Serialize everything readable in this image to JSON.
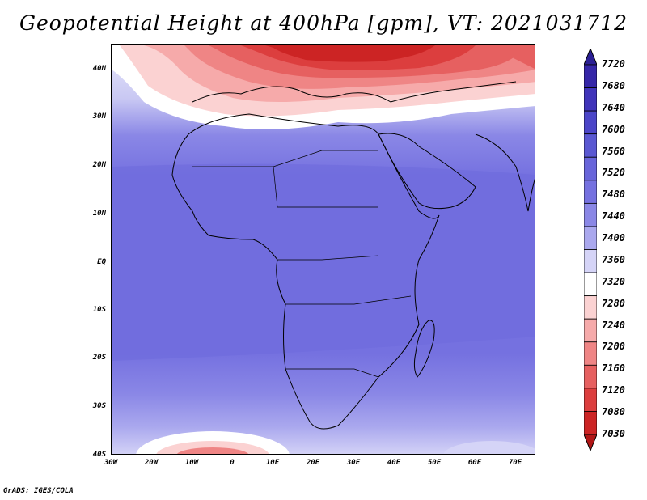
{
  "title": "Geopotential Height at 400hPa [gpm], VT: 2021031712",
  "credit": "GrADS: IGES/COLA",
  "map": {
    "lat_labels": [
      "40N",
      "30N",
      "20N",
      "10N",
      "EQ",
      "10S",
      "20S",
      "30S",
      "40S"
    ],
    "lon_labels": [
      "30W",
      "20W",
      "10W",
      "0",
      "10E",
      "20E",
      "30E",
      "40E",
      "50E",
      "60E",
      "70E"
    ],
    "lat_range": [
      -40,
      45
    ],
    "lon_range": [
      -30,
      75
    ],
    "field": "geopotential height",
    "level": "400hPa",
    "units": "gpm"
  },
  "colorbar": {
    "labels": [
      "7720",
      "7680",
      "7640",
      "7600",
      "7560",
      "7520",
      "7480",
      "7440",
      "7400",
      "7360",
      "7320",
      "7280",
      "7240",
      "7200",
      "7160",
      "7120",
      "7080",
      "7030"
    ],
    "colors": [
      "#2b1f94",
      "#3526a8",
      "#4034ba",
      "#4b45c8",
      "#5a58d2",
      "#6865da",
      "#7571e0",
      "#8a87e6",
      "#aaa8ee",
      "#d5d4f7",
      "#ffffff",
      "#fbd2d2",
      "#f6aaaa",
      "#ef8585",
      "#e66060",
      "#dc3e3e",
      "#cc2424",
      "#b01616"
    ]
  }
}
